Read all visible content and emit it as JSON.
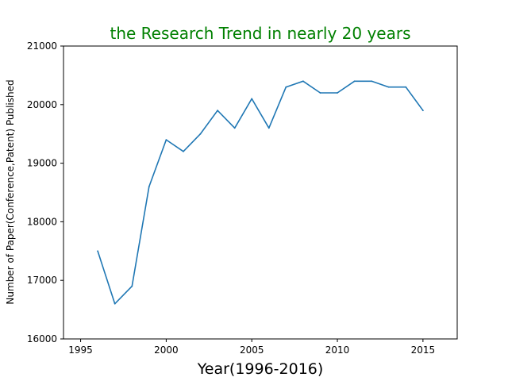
{
  "chart_data": {
    "type": "line",
    "title": "the Research Trend in nearly 20 years",
    "xlabel": "Year(1996-2016)",
    "ylabel": "Number of Paper(Conference,Patent) Published",
    "xlim": [
      1994,
      2017
    ],
    "ylim": [
      16000,
      21000
    ],
    "x_ticks": [
      1995,
      2000,
      2005,
      2010,
      2015
    ],
    "y_ticks": [
      16000,
      17000,
      18000,
      19000,
      20000,
      21000
    ],
    "grid": false,
    "series": [
      {
        "x": [
          1996,
          1997,
          1998,
          1999,
          2000,
          2001,
          2002,
          2003,
          2004,
          2005,
          2006,
          2007,
          2008,
          2009,
          2010,
          2011,
          2012,
          2013,
          2014,
          2015
        ],
        "values": [
          17500,
          16600,
          16900,
          18600,
          19400,
          19200,
          19500,
          19900,
          19600,
          20100,
          19600,
          20300,
          20400,
          20200,
          20200,
          20400,
          20400,
          20300,
          20300,
          19900
        ]
      }
    ],
    "colors": {
      "line": "#1f77b4",
      "title": "#008000",
      "xlabel": "#000000"
    }
  }
}
